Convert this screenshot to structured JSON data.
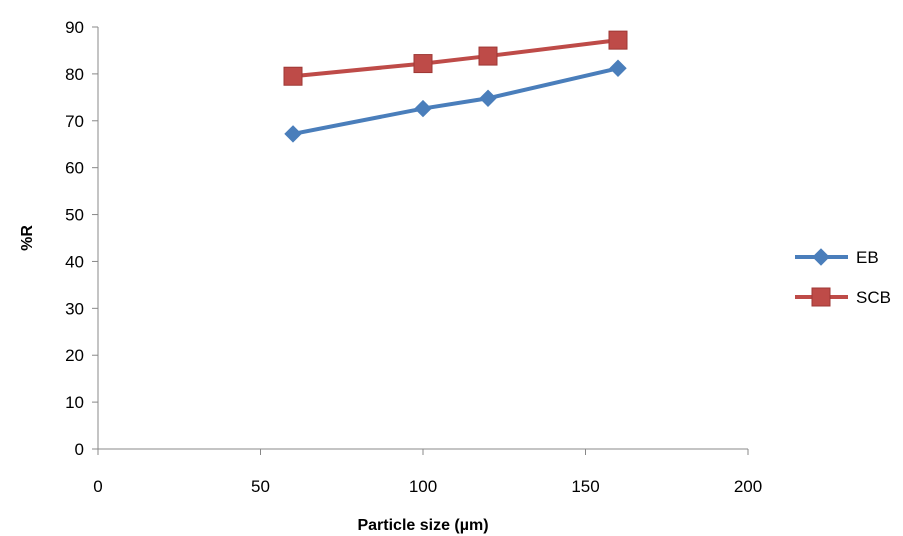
{
  "chart_data": {
    "type": "scatter",
    "xlabel": "Particle size (µm)",
    "ylabel": "%R",
    "xlim": [
      0,
      200
    ],
    "ylim": [
      0,
      90
    ],
    "xticks": [
      0,
      50,
      100,
      150,
      200
    ],
    "yticks": [
      0,
      10,
      20,
      30,
      40,
      50,
      60,
      70,
      80,
      90
    ],
    "grid": false,
    "legend_position": "right",
    "series": [
      {
        "name": "EB",
        "marker": "diamond",
        "color": "#4a7ebb",
        "x": [
          60,
          100,
          120,
          160
        ],
        "y": [
          67.2,
          72.6,
          74.8,
          81.2
        ]
      },
      {
        "name": "SCB",
        "marker": "square",
        "color": "#be4b48",
        "x": [
          60,
          100,
          120,
          160
        ],
        "y": [
          79.5,
          82.2,
          83.8,
          87.2
        ]
      }
    ]
  }
}
